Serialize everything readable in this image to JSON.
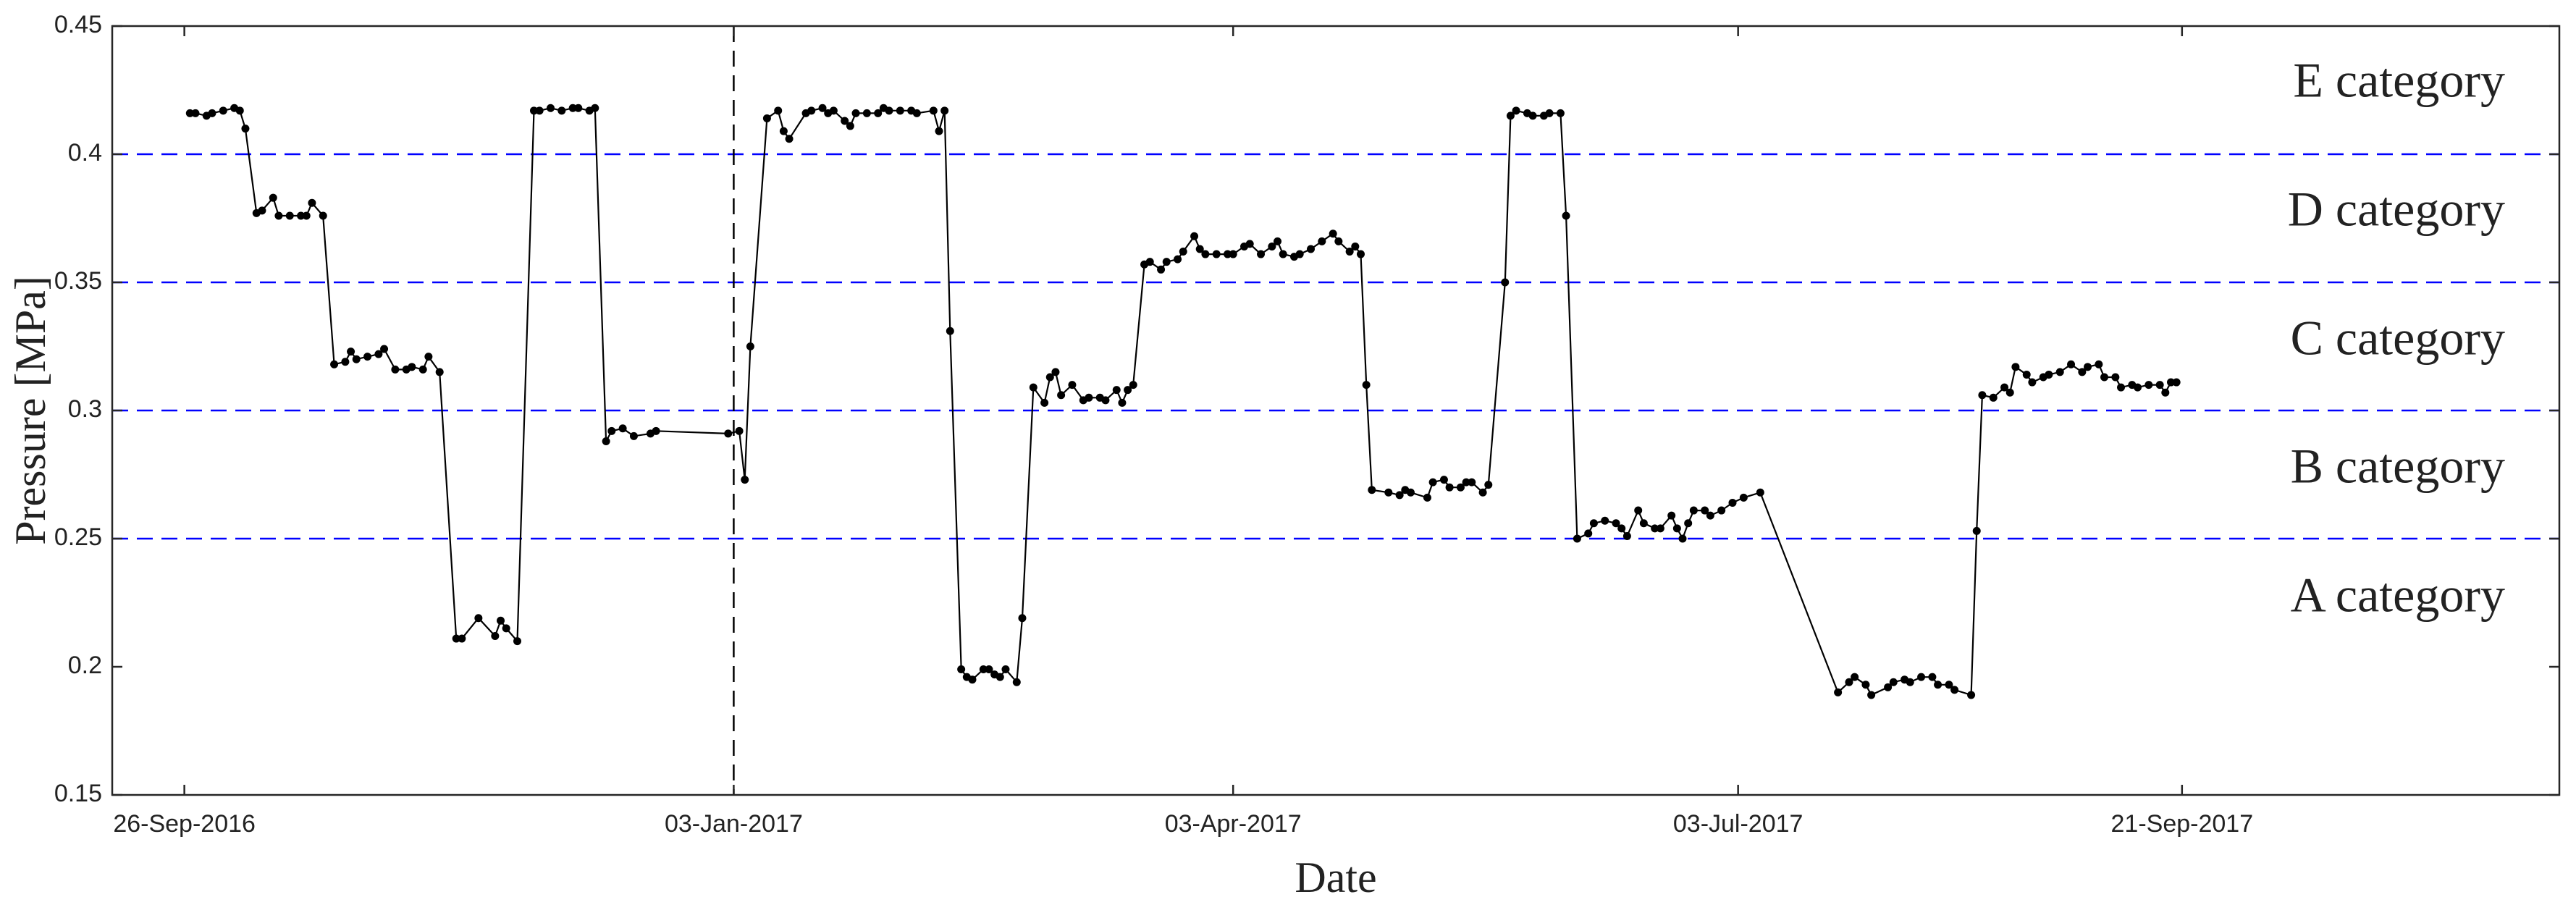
{
  "chart_data": {
    "type": "line",
    "xlabel": "Date",
    "ylabel": "Pressure [MPa]",
    "color": "#000000",
    "xlim": [
      "2016-09-13",
      "2017-11-28"
    ],
    "xticks": [
      {
        "value": "2016-09-26",
        "label": "26-Sep-2016"
      },
      {
        "value": "2017-01-03",
        "label": "03-Jan-2017"
      },
      {
        "value": "2017-04-03",
        "label": "03-Apr-2017"
      },
      {
        "value": "2017-07-03",
        "label": "03-Jul-2017"
      },
      {
        "value": "2017-09-21",
        "label": "21-Sep-2017"
      }
    ],
    "ylim": [
      0.15,
      0.45
    ],
    "yticks": [
      0.15,
      0.2,
      0.25,
      0.3,
      0.35,
      0.4,
      0.45
    ],
    "hlines": [
      0.25,
      0.3,
      0.35,
      0.4
    ],
    "hline_color": "#0000ff",
    "vline": "2017-01-03",
    "annotations": [
      "E category",
      "D category",
      "C category",
      "B category",
      "A category"
    ],
    "x": [
      "2016-09-27",
      "2016-09-28",
      "2016-09-30",
      "2016-10-01",
      "2016-10-03",
      "2016-10-05",
      "2016-10-06",
      "2016-10-07",
      "2016-10-09",
      "2016-10-10",
      "2016-10-12",
      "2016-10-13",
      "2016-10-15",
      "2016-10-17",
      "2016-10-18",
      "2016-10-19",
      "2016-10-21",
      "2016-10-23",
      "2016-10-25",
      "2016-10-26",
      "2016-10-27",
      "2016-10-29",
      "2016-10-31",
      "2016-11-01",
      "2016-11-03",
      "2016-11-05",
      "2016-11-06",
      "2016-11-08",
      "2016-11-09",
      "2016-11-11",
      "2016-11-14",
      "2016-11-15",
      "2016-11-18",
      "2016-11-21",
      "2016-11-22",
      "2016-11-23",
      "2016-11-25",
      "2016-11-28",
      "2016-11-29",
      "2016-12-01",
      "2016-12-03",
      "2016-12-05",
      "2016-12-06",
      "2016-12-08",
      "2016-12-09",
      "2016-12-11",
      "2016-12-12",
      "2016-12-14",
      "2016-12-16",
      "2016-12-19",
      "2016-12-20",
      "2017-01-02",
      "2017-01-04",
      "2017-01-05",
      "2017-01-06",
      "2017-01-09",
      "2017-01-11",
      "2017-01-12",
      "2017-01-13",
      "2017-01-16",
      "2017-01-17",
      "2017-01-19",
      "2017-01-20",
      "2017-01-21",
      "2017-01-23",
      "2017-01-24",
      "2017-01-25",
      "2017-01-27",
      "2017-01-29",
      "2017-01-30",
      "2017-01-31",
      "2017-02-02",
      "2017-02-04",
      "2017-02-05",
      "2017-02-08",
      "2017-02-09",
      "2017-02-10",
      "2017-02-11",
      "2017-02-13",
      "2017-02-14",
      "2017-02-15",
      "2017-02-17",
      "2017-02-18",
      "2017-02-19",
      "2017-02-20",
      "2017-02-21",
      "2017-02-23",
      "2017-02-24",
      "2017-02-26",
      "2017-02-28",
      "2017-03-01",
      "2017-03-02",
      "2017-03-03",
      "2017-03-05",
      "2017-03-07",
      "2017-03-08",
      "2017-03-10",
      "2017-03-11",
      "2017-03-13",
      "2017-03-14",
      "2017-03-15",
      "2017-03-16",
      "2017-03-18",
      "2017-03-19",
      "2017-03-21",
      "2017-03-22",
      "2017-03-24",
      "2017-03-25",
      "2017-03-27",
      "2017-03-28",
      "2017-03-29",
      "2017-03-31",
      "2017-04-02",
      "2017-04-03",
      "2017-04-05",
      "2017-04-06",
      "2017-04-08",
      "2017-04-10",
      "2017-04-11",
      "2017-04-12",
      "2017-04-14",
      "2017-04-15",
      "2017-04-17",
      "2017-04-19",
      "2017-04-21",
      "2017-04-22",
      "2017-04-24",
      "2017-04-25",
      "2017-04-26",
      "2017-04-27",
      "2017-04-28",
      "2017-05-01",
      "2017-05-03",
      "2017-05-04",
      "2017-05-05",
      "2017-05-08",
      "2017-05-09",
      "2017-05-11",
      "2017-05-12",
      "2017-05-14",
      "2017-05-15",
      "2017-05-16",
      "2017-05-18",
      "2017-05-19",
      "2017-05-22",
      "2017-05-23",
      "2017-05-24",
      "2017-05-26",
      "2017-05-27",
      "2017-05-29",
      "2017-05-30",
      "2017-06-01",
      "2017-06-02",
      "2017-06-04",
      "2017-06-06",
      "2017-06-07",
      "2017-06-09",
      "2017-06-11",
      "2017-06-12",
      "2017-06-13",
      "2017-06-15",
      "2017-06-16",
      "2017-06-18",
      "2017-06-19",
      "2017-06-21",
      "2017-06-22",
      "2017-06-23",
      "2017-06-24",
      "2017-06-25",
      "2017-06-27",
      "2017-06-28",
      "2017-06-30",
      "2017-07-02",
      "2017-07-04",
      "2017-07-07",
      "2017-07-21",
      "2017-07-23",
      "2017-07-24",
      "2017-07-26",
      "2017-07-27",
      "2017-07-30",
      "2017-07-31",
      "2017-08-02",
      "2017-08-03",
      "2017-08-05",
      "2017-08-07",
      "2017-08-08",
      "2017-08-10",
      "2017-08-11",
      "2017-08-14",
      "2017-08-15",
      "2017-08-16",
      "2017-08-18",
      "2017-08-20",
      "2017-08-21",
      "2017-08-22",
      "2017-08-24",
      "2017-08-25",
      "2017-08-27",
      "2017-08-28",
      "2017-08-30",
      "2017-09-01",
      "2017-09-03",
      "2017-09-04",
      "2017-09-06",
      "2017-09-07",
      "2017-09-09",
      "2017-09-10",
      "2017-09-12",
      "2017-09-13",
      "2017-09-15",
      "2017-09-17",
      "2017-09-18",
      "2017-09-19",
      "2017-09-20"
    ],
    "values": [
      0.416,
      0.416,
      0.415,
      0.416,
      0.417,
      0.418,
      0.417,
      0.41,
      0.377,
      0.378,
      0.383,
      0.376,
      0.376,
      0.376,
      0.376,
      0.381,
      0.376,
      0.318,
      0.319,
      0.323,
      0.32,
      0.321,
      0.322,
      0.324,
      0.316,
      0.316,
      0.317,
      0.316,
      0.321,
      0.315,
      0.211,
      0.211,
      0.219,
      0.212,
      0.218,
      0.215,
      0.21,
      0.417,
      0.417,
      0.418,
      0.417,
      0.418,
      0.418,
      0.417,
      0.418,
      0.288,
      0.292,
      0.293,
      0.29,
      0.291,
      0.292,
      0.291,
      0.292,
      0.273,
      0.325,
      0.414,
      0.417,
      0.409,
      0.406,
      0.416,
      0.417,
      0.418,
      0.416,
      0.417,
      0.413,
      0.411,
      0.416,
      0.416,
      0.416,
      0.418,
      0.417,
      0.417,
      0.417,
      0.416,
      0.417,
      0.409,
      0.417,
      0.331,
      0.199,
      0.196,
      0.195,
      0.199,
      0.199,
      0.197,
      0.196,
      0.199,
      0.194,
      0.219,
      0.309,
      0.303,
      0.313,
      0.315,
      0.306,
      0.31,
      0.304,
      0.305,
      0.305,
      0.304,
      0.308,
      0.303,
      0.308,
      0.31,
      0.357,
      0.358,
      0.355,
      0.358,
      0.359,
      0.362,
      0.368,
      0.363,
      0.361,
      0.361,
      0.361,
      0.361,
      0.364,
      0.365,
      0.361,
      0.364,
      0.366,
      0.361,
      0.36,
      0.361,
      0.363,
      0.366,
      0.369,
      0.366,
      0.362,
      0.364,
      0.361,
      0.31,
      0.269,
      0.268,
      0.267,
      0.269,
      0.268,
      0.266,
      0.272,
      0.273,
      0.27,
      0.27,
      0.272,
      0.272,
      0.268,
      0.271,
      0.35,
      0.415,
      0.417,
      0.416,
      0.415,
      0.415,
      0.416,
      0.416,
      0.376,
      0.25,
      0.252,
      0.256,
      0.257,
      0.256,
      0.254,
      0.251,
      0.261,
      0.256,
      0.254,
      0.254,
      0.259,
      0.254,
      0.25,
      0.256,
      0.261,
      0.261,
      0.259,
      0.261,
      0.264,
      0.266,
      0.268,
      0.19,
      0.194,
      0.196,
      0.193,
      0.189,
      0.192,
      0.194,
      0.195,
      0.194,
      0.196,
      0.196,
      0.193,
      0.193,
      0.191,
      0.189,
      0.253,
      0.306,
      0.305,
      0.309,
      0.307,
      0.317,
      0.314,
      0.311,
      0.313,
      0.314,
      0.315,
      0.318,
      0.315,
      0.317,
      0.318,
      0.313,
      0.313,
      0.309,
      0.31,
      0.309,
      0.31,
      0.31,
      0.307,
      0.311,
      0.311
    ]
  }
}
